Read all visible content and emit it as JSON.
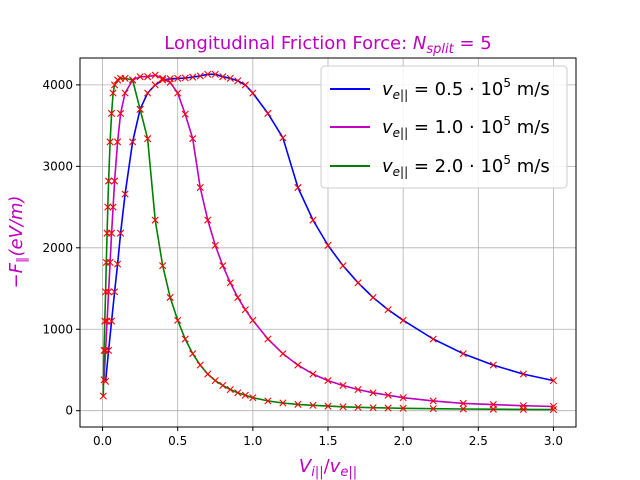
{
  "chart_data": {
    "type": "line",
    "title": {
      "prefix": "Longitudinal Friction Force: ",
      "symbol": "N",
      "subscript": "split",
      "suffix": " = 5",
      "color": "#bf00bf"
    },
    "xlabel": {
      "main": "V",
      "sub": "i||",
      "slash": "/",
      "main2": "v",
      "sub2": "e||",
      "color": "#bf00bf"
    },
    "ylabel": {
      "minus": "−",
      "F": "F",
      "sub": "∥",
      "rest": "(eV/m)",
      "color": "#bf00bf"
    },
    "xlim": [
      -0.15,
      3.15
    ],
    "ylim": [
      -200,
      4330
    ],
    "xticks": [
      0.0,
      0.5,
      1.0,
      1.5,
      2.0,
      2.5,
      3.0
    ],
    "xtick_labels": [
      "0.0",
      "0.5",
      "1.0",
      "1.5",
      "2.0",
      "2.5",
      "3.0"
    ],
    "yticks": [
      0,
      1000,
      2000,
      3000,
      4000
    ],
    "ytick_labels": [
      "0",
      "1000",
      "2000",
      "3000",
      "4000"
    ],
    "grid": true,
    "legend_position": "top-right",
    "marker_color": "#ff0000",
    "series": [
      {
        "name_v": "v",
        "name_sub": "e||",
        "name_rest": " = 0.5 · 10",
        "name_exp": "5",
        "name_unit": " m/s",
        "color": "#0000ff",
        "x": [
          0.02,
          0.04,
          0.06,
          0.08,
          0.1,
          0.12,
          0.15,
          0.2,
          0.25,
          0.3,
          0.35,
          0.4,
          0.45,
          0.5,
          0.55,
          0.6,
          0.65,
          0.7,
          0.75,
          0.8,
          0.85,
          0.9,
          0.95,
          1.0,
          1.1,
          1.2,
          1.3,
          1.4,
          1.5,
          1.6,
          1.7,
          1.8,
          1.9,
          2.0,
          2.2,
          2.4,
          2.6,
          2.8,
          3.0
        ],
        "y": [
          360,
          740,
          1100,
          1460,
          1800,
          2180,
          2660,
          3300,
          3700,
          3900,
          4000,
          4060,
          4075,
          4080,
          4085,
          4095,
          4110,
          4130,
          4130,
          4100,
          4080,
          4050,
          4000,
          3900,
          3650,
          3350,
          2740,
          2340,
          2030,
          1780,
          1570,
          1390,
          1240,
          1110,
          880,
          700,
          560,
          450,
          370
        ]
      },
      {
        "name_v": "v",
        "name_sub": "e||",
        "name_rest": " = 1.0 · 10",
        "name_exp": "5",
        "name_unit": " m/s",
        "color": "#bf00bf",
        "x": [
          0.01,
          0.02,
          0.03,
          0.04,
          0.05,
          0.06,
          0.07,
          0.08,
          0.1,
          0.12,
          0.15,
          0.2,
          0.25,
          0.3,
          0.35,
          0.4,
          0.45,
          0.5,
          0.55,
          0.6,
          0.65,
          0.7,
          0.75,
          0.8,
          0.85,
          0.9,
          0.95,
          1.0,
          1.1,
          1.2,
          1.3,
          1.4,
          1.5,
          1.6,
          1.7,
          1.8,
          1.9,
          2.0,
          2.2,
          2.4,
          2.6,
          2.8,
          3.0
        ],
        "y": [
          380,
          740,
          1100,
          1460,
          1820,
          2180,
          2500,
          2820,
          3300,
          3650,
          3900,
          4060,
          4100,
          4100,
          4120,
          4080,
          4030,
          3900,
          3640,
          3340,
          2740,
          2340,
          2030,
          1780,
          1570,
          1390,
          1240,
          1110,
          880,
          700,
          560,
          450,
          370,
          310,
          260,
          220,
          190,
          160,
          120,
          90,
          75,
          62,
          52
        ]
      },
      {
        "name_v": "v",
        "name_sub": "e||",
        "name_rest": " = 2.0 · 10",
        "name_exp": "5",
        "name_unit": " m/s",
        "color": "#008000",
        "x": [
          0.005,
          0.01,
          0.015,
          0.02,
          0.025,
          0.03,
          0.035,
          0.04,
          0.05,
          0.06,
          0.07,
          0.08,
          0.1,
          0.12,
          0.15,
          0.2,
          0.25,
          0.3,
          0.35,
          0.4,
          0.45,
          0.5,
          0.55,
          0.6,
          0.65,
          0.7,
          0.75,
          0.8,
          0.85,
          0.9,
          0.95,
          1.0,
          1.1,
          1.2,
          1.3,
          1.4,
          1.5,
          1.6,
          1.7,
          1.8,
          1.9,
          2.0,
          2.2,
          2.4,
          2.6,
          2.8,
          3.0
        ],
        "y": [
          180,
          740,
          1100,
          1460,
          1820,
          2180,
          2500,
          2820,
          3300,
          3650,
          3900,
          4000,
          4060,
          4080,
          4080,
          4060,
          3700,
          3340,
          2340,
          1780,
          1390,
          1110,
          880,
          700,
          560,
          450,
          370,
          310,
          260,
          220,
          190,
          160,
          120,
          95,
          78,
          66,
          56,
          48,
          42,
          37,
          33,
          30,
          25,
          21,
          18,
          16,
          14
        ]
      }
    ]
  }
}
